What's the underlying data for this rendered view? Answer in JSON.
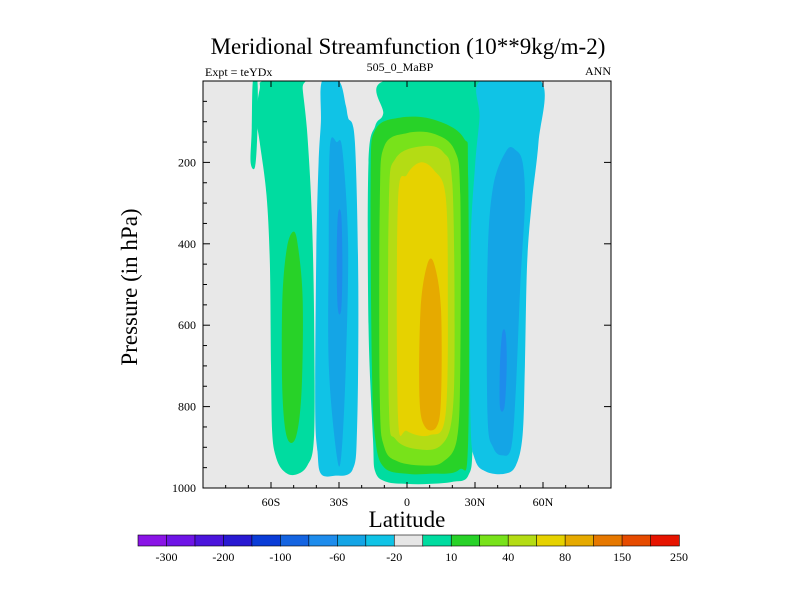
{
  "chart_data": {
    "type": "heatmap",
    "subtype": "filled-contour",
    "title": "Meridional Streamfunction (10**9kg/m-2)",
    "left_label": "Expt = teYDx",
    "center_label": "505_0_MaBP",
    "right_label": "ANN",
    "xlabel": "Latitude",
    "ylabel": "Pressure (in hPa)",
    "xlim": [
      -90,
      90
    ],
    "ylim": [
      1000,
      0
    ],
    "xticks": [
      {
        "value": -60,
        "label": "60S"
      },
      {
        "value": -30,
        "label": "30S"
      },
      {
        "value": 0,
        "label": "0"
      },
      {
        "value": 30,
        "label": "30N"
      },
      {
        "value": 60,
        "label": "60N"
      }
    ],
    "yticks": [
      {
        "value": 200,
        "label": "200"
      },
      {
        "value": 400,
        "label": "400"
      },
      {
        "value": 600,
        "label": "600"
      },
      {
        "value": 800,
        "label": "800"
      },
      {
        "value": 1000,
        "label": "1000"
      }
    ],
    "no_data_color": "#e8e8e8",
    "colorbar": {
      "colors": [
        "#8a14e6",
        "#6e14e6",
        "#4b14dc",
        "#2819d2",
        "#0a3cd7",
        "#1464e1",
        "#1e8cec",
        "#14a5e6",
        "#10c3e6",
        "#e6e6e6",
        "#00dca0",
        "#28d228",
        "#78e21a",
        "#b4dc14",
        "#e6d200",
        "#e6aa00",
        "#e67800",
        "#e64b00",
        "#e61400"
      ],
      "labels": [
        "-300",
        "-200",
        "-100",
        "-60",
        "-20",
        "10",
        "40",
        "80",
        "150",
        "250"
      ]
    },
    "cells": [
      {
        "name": "cell-60S-positive",
        "color": "#00dca0",
        "points": [
          [
            -63,
            0
          ],
          [
            -65,
            20
          ],
          [
            -66.5,
            88
          ],
          [
            -65,
            150
          ],
          [
            -62,
            280
          ],
          [
            -60.5,
            450
          ],
          [
            -60,
            700
          ],
          [
            -59.5,
            860
          ],
          [
            -58,
            920
          ],
          [
            -55,
            955
          ],
          [
            -50,
            968
          ],
          [
            -44,
            945
          ],
          [
            -41,
            870
          ],
          [
            -41,
            580
          ],
          [
            -42,
            330
          ],
          [
            -44,
            130
          ],
          [
            -46,
            20
          ],
          [
            -46,
            0
          ]
        ]
      },
      {
        "name": "cell-60S-positive-core",
        "color": "#28d228",
        "points": [
          [
            -53,
            410
          ],
          [
            -55,
            540
          ],
          [
            -55,
            760
          ],
          [
            -53,
            875
          ],
          [
            -49,
            875
          ],
          [
            -46.5,
            760
          ],
          [
            -46,
            540
          ],
          [
            -48,
            410
          ],
          [
            -50,
            370
          ]
        ]
      },
      {
        "name": "cell-67S-sliver",
        "color": "#00dca0",
        "points": [
          [
            -68,
            0
          ],
          [
            -68.5,
            120
          ],
          [
            -69,
            200
          ],
          [
            -67,
            210
          ],
          [
            -66,
            120
          ],
          [
            -66,
            0
          ]
        ]
      },
      {
        "name": "cell-35S-negative",
        "color": "#10c3e6",
        "points": [
          [
            -37.5,
            0
          ],
          [
            -38,
            100
          ],
          [
            -39,
            200
          ],
          [
            -40,
            420
          ],
          [
            -40.5,
            800
          ],
          [
            -39.5,
            910
          ],
          [
            -38,
            965
          ],
          [
            -32,
            970
          ],
          [
            -24,
            955
          ],
          [
            -22,
            850
          ],
          [
            -21.5,
            500
          ],
          [
            -23,
            150
          ],
          [
            -26,
            90
          ],
          [
            -27,
            60
          ],
          [
            -30,
            0
          ]
        ]
      },
      {
        "name": "cell-35S-negative-mid",
        "color": "#14a5e6",
        "points": [
          [
            -34,
            160
          ],
          [
            -34.5,
            400
          ],
          [
            -34.5,
            700
          ],
          [
            -31,
            920
          ],
          [
            -29,
            920
          ],
          [
            -27,
            700
          ],
          [
            -26,
            400
          ],
          [
            -28.5,
            170
          ],
          [
            -31,
            150
          ]
        ]
      },
      {
        "name": "cell-35S-negative-core",
        "color": "#1e8cec",
        "points": [
          [
            -30.5,
            330
          ],
          [
            -31,
            450
          ],
          [
            -30.5,
            560
          ],
          [
            -29,
            560
          ],
          [
            -28.5,
            450
          ],
          [
            -29,
            330
          ]
        ]
      },
      {
        "name": "cell-N-hadley-lightgreen",
        "color": "#00dca0",
        "points": [
          [
            -10,
            0
          ],
          [
            -10.5,
            80
          ],
          [
            -14,
            110
          ],
          [
            -17,
            200
          ],
          [
            -17,
            600
          ],
          [
            -15,
            880
          ],
          [
            -14,
            960
          ],
          [
            -9,
            985
          ],
          [
            0,
            990
          ],
          [
            10,
            990
          ],
          [
            20,
            985
          ],
          [
            27,
            970
          ],
          [
            29,
            880
          ],
          [
            29,
            500
          ],
          [
            31,
            250
          ],
          [
            34,
            120
          ],
          [
            38,
            0
          ]
        ]
      },
      {
        "name": "cell-N-hadley-green",
        "color": "#28d228",
        "points": [
          [
            -14,
            120
          ],
          [
            -16,
            240
          ],
          [
            -15.5,
            700
          ],
          [
            -14,
            880
          ],
          [
            -10,
            950
          ],
          [
            0,
            965
          ],
          [
            10,
            965
          ],
          [
            23,
            955
          ],
          [
            27,
            880
          ],
          [
            27,
            240
          ],
          [
            25,
            140
          ],
          [
            12,
            95
          ],
          [
            -3,
            90
          ]
        ]
      },
      {
        "name": "cell-N-hadley-lime",
        "color": "#78e21a",
        "points": [
          [
            -10,
            160
          ],
          [
            -12,
            300
          ],
          [
            -12,
            780
          ],
          [
            -10,
            900
          ],
          [
            -4,
            935
          ],
          [
            8,
            945
          ],
          [
            16,
            935
          ],
          [
            22,
            880
          ],
          [
            23.5,
            700
          ],
          [
            23.5,
            280
          ],
          [
            21,
            170
          ],
          [
            12,
            130
          ],
          [
            0,
            128
          ]
        ]
      },
      {
        "name": "cell-N-hadley-olive",
        "color": "#b4dc14",
        "points": [
          [
            -5,
            190
          ],
          [
            -8,
            300
          ],
          [
            -8,
            800
          ],
          [
            -5,
            880
          ],
          [
            5,
            905
          ],
          [
            15,
            895
          ],
          [
            20,
            820
          ],
          [
            21,
            600
          ],
          [
            20,
            250
          ],
          [
            16,
            175
          ],
          [
            7,
            160
          ]
        ]
      },
      {
        "name": "cell-N-hadley-yellow",
        "color": "#e6d200",
        "points": [
          [
            0,
            230
          ],
          [
            -4,
            300
          ],
          [
            -4,
            820
          ],
          [
            0,
            860
          ],
          [
            10,
            870
          ],
          [
            17,
            820
          ],
          [
            18,
            500
          ],
          [
            17,
            280
          ],
          [
            12,
            220
          ],
          [
            6,
            200
          ]
        ]
      },
      {
        "name": "cell-N-hadley-orange",
        "color": "#e6aa00",
        "points": [
          [
            9,
            450
          ],
          [
            6,
            560
          ],
          [
            5.5,
            780
          ],
          [
            8,
            850
          ],
          [
            13,
            850
          ],
          [
            15,
            780
          ],
          [
            15,
            560
          ],
          [
            12,
            450
          ]
        ]
      },
      {
        "name": "cell-45N-negative",
        "color": "#10c3e6",
        "points": [
          [
            32.5,
            0
          ],
          [
            32,
            90
          ],
          [
            30,
            210
          ],
          [
            28,
            420
          ],
          [
            28,
            830
          ],
          [
            30,
            930
          ],
          [
            35,
            960
          ],
          [
            43,
            965
          ],
          [
            48,
            945
          ],
          [
            51,
            870
          ],
          [
            52,
            700
          ],
          [
            53,
            450
          ],
          [
            55,
            300
          ],
          [
            58,
            150
          ],
          [
            59,
            0
          ]
        ]
      },
      {
        "name": "cell-45N-negative-core",
        "color": "#14a5e6",
        "points": [
          [
            44,
            170
          ],
          [
            38,
            260
          ],
          [
            35.5,
            450
          ],
          [
            35.5,
            820
          ],
          [
            38,
            900
          ],
          [
            42,
            920
          ],
          [
            46,
            900
          ],
          [
            48,
            760
          ],
          [
            50,
            500
          ],
          [
            52,
            300
          ],
          [
            51,
            200
          ],
          [
            48,
            170
          ]
        ]
      },
      {
        "name": "cell-45N-negative-spot",
        "color": "#1e8cec",
        "points": [
          [
            42,
            620
          ],
          [
            41,
            700
          ],
          [
            41,
            800
          ],
          [
            43,
            800
          ],
          [
            44,
            700
          ],
          [
            43.5,
            620
          ]
        ]
      }
    ]
  }
}
